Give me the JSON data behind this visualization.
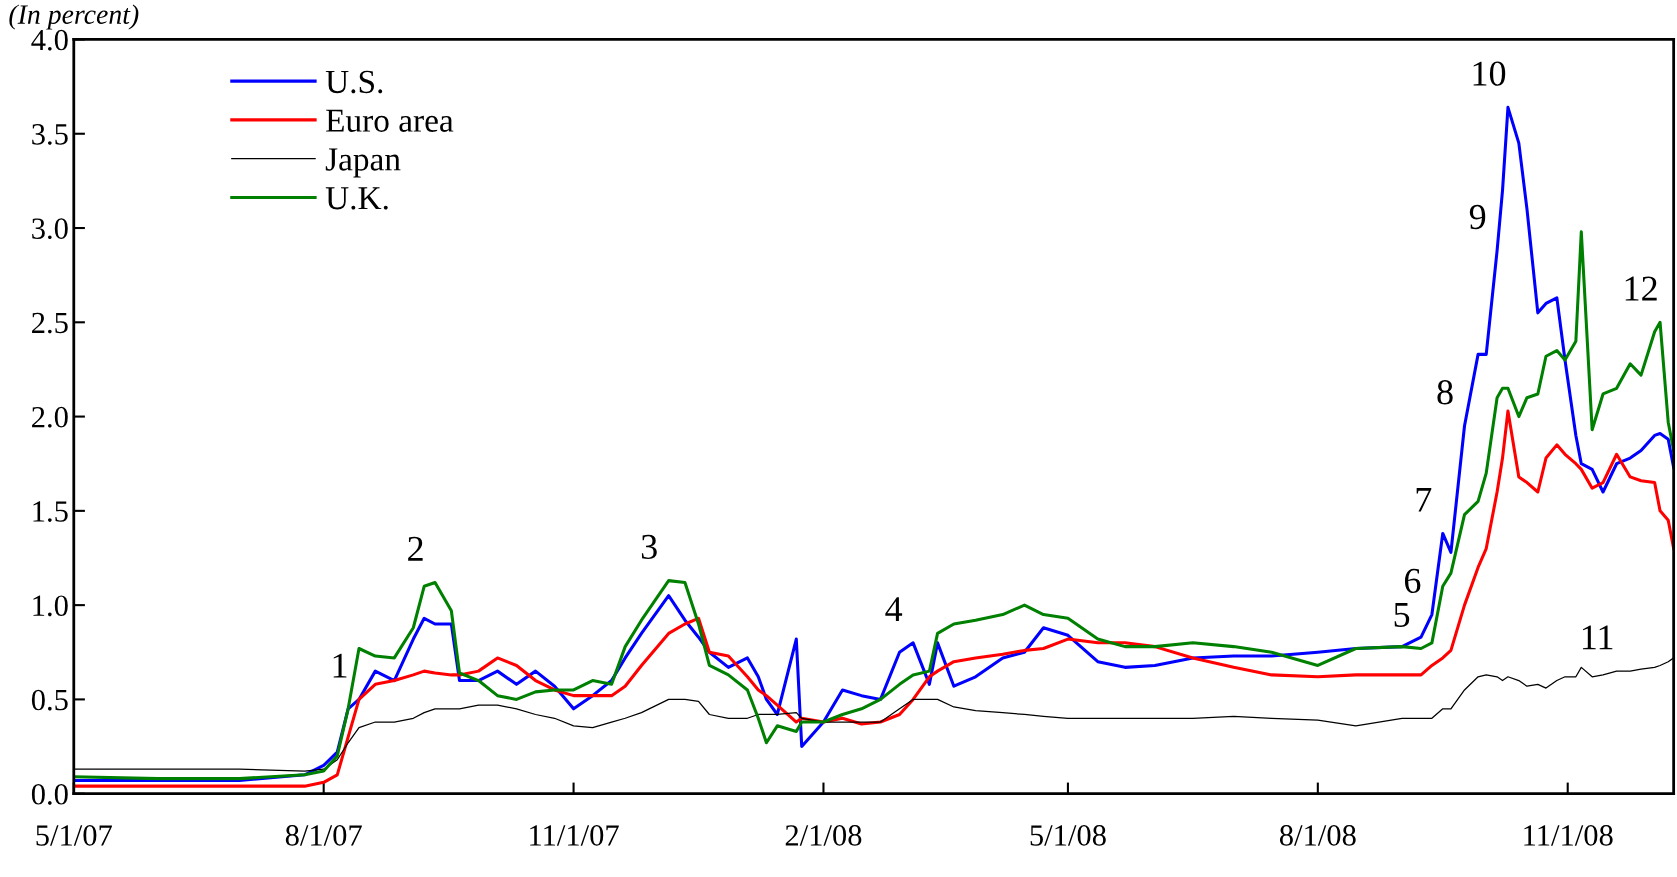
{
  "chart_data": {
    "type": "line",
    "ylabel": "(In percent)",
    "x": [
      "2007-05-01",
      "2007-06-01",
      "2007-07-01",
      "2007-07-25",
      "2007-08-01",
      "2007-08-06",
      "2007-08-10",
      "2007-08-14",
      "2007-08-20",
      "2007-08-27",
      "2007-09-03",
      "2007-09-07",
      "2007-09-11",
      "2007-09-17",
      "2007-09-20",
      "2007-09-27",
      "2007-10-04",
      "2007-10-11",
      "2007-10-18",
      "2007-10-25",
      "2007-11-01",
      "2007-11-08",
      "2007-11-15",
      "2007-11-20",
      "2007-11-26",
      "2007-12-06",
      "2007-12-12",
      "2007-12-17",
      "2007-12-21",
      "2007-12-28",
      "2008-01-04",
      "2008-01-08",
      "2008-01-11",
      "2008-01-15",
      "2008-01-22",
      "2008-01-24",
      "2008-02-01",
      "2008-02-08",
      "2008-02-15",
      "2008-02-22",
      "2008-02-29",
      "2008-03-05",
      "2008-03-11",
      "2008-03-14",
      "2008-03-20",
      "2008-03-28",
      "2008-04-07",
      "2008-04-15",
      "2008-04-22",
      "2008-05-01",
      "2008-05-12",
      "2008-05-22",
      "2008-06-02",
      "2008-06-16",
      "2008-07-01",
      "2008-07-15",
      "2008-08-01",
      "2008-08-15",
      "2008-09-01",
      "2008-09-08",
      "2008-09-12",
      "2008-09-16",
      "2008-09-19",
      "2008-09-24",
      "2008-09-29",
      "2008-10-02",
      "2008-10-06",
      "2008-10-08",
      "2008-10-10",
      "2008-10-14",
      "2008-10-17",
      "2008-10-21",
      "2008-10-24",
      "2008-10-28",
      "2008-10-31",
      "2008-11-04",
      "2008-11-06",
      "2008-11-10",
      "2008-11-14",
      "2008-11-19",
      "2008-11-24",
      "2008-11-28",
      "2008-12-03",
      "2008-12-05",
      "2008-12-08",
      "2008-12-10"
    ],
    "series": [
      {
        "name": "U.S.",
        "color": "#0000ff",
        "values": [
          0.07,
          0.07,
          0.07,
          0.1,
          0.15,
          0.22,
          0.45,
          0.5,
          0.65,
          0.6,
          0.82,
          0.93,
          0.9,
          0.9,
          0.6,
          0.6,
          0.65,
          0.58,
          0.65,
          0.57,
          0.45,
          0.52,
          0.6,
          0.72,
          0.85,
          1.05,
          0.92,
          0.83,
          0.75,
          0.67,
          0.72,
          0.62,
          0.5,
          0.42,
          0.82,
          0.25,
          0.38,
          0.55,
          0.52,
          0.5,
          0.75,
          0.8,
          0.58,
          0.8,
          0.57,
          0.62,
          0.72,
          0.75,
          0.88,
          0.84,
          0.7,
          0.67,
          0.68,
          0.72,
          0.73,
          0.73,
          0.75,
          0.77,
          0.78,
          0.83,
          0.95,
          1.38,
          1.28,
          1.95,
          2.33,
          2.33,
          2.88,
          3.2,
          3.64,
          3.45,
          3.1,
          2.55,
          2.6,
          2.63,
          2.3,
          1.9,
          1.75,
          1.72,
          1.6,
          1.75,
          1.78,
          1.82,
          1.9,
          1.91,
          1.88,
          1.73
        ]
      },
      {
        "name": "Euro area",
        "color": "#ff0000",
        "values": [
          0.04,
          0.04,
          0.04,
          0.04,
          0.06,
          0.1,
          0.3,
          0.5,
          0.58,
          0.6,
          0.63,
          0.65,
          0.64,
          0.63,
          0.63,
          0.65,
          0.72,
          0.68,
          0.6,
          0.55,
          0.52,
          0.52,
          0.52,
          0.57,
          0.68,
          0.85,
          0.9,
          0.93,
          0.75,
          0.73,
          0.62,
          0.55,
          0.52,
          0.47,
          0.38,
          0.4,
          0.38,
          0.4,
          0.37,
          0.38,
          0.42,
          0.5,
          0.62,
          0.65,
          0.7,
          0.72,
          0.74,
          0.76,
          0.77,
          0.82,
          0.8,
          0.8,
          0.78,
          0.72,
          0.67,
          0.63,
          0.62,
          0.63,
          0.63,
          0.63,
          0.68,
          0.72,
          0.76,
          1.0,
          1.2,
          1.3,
          1.6,
          1.78,
          2.03,
          1.68,
          1.65,
          1.6,
          1.78,
          1.85,
          1.8,
          1.75,
          1.72,
          1.62,
          1.65,
          1.8,
          1.68,
          1.66,
          1.65,
          1.5,
          1.45,
          1.3
        ]
      },
      {
        "name": "Japan",
        "color": "#000000",
        "values": [
          0.13,
          0.13,
          0.13,
          0.12,
          0.13,
          0.18,
          0.27,
          0.35,
          0.38,
          0.38,
          0.4,
          0.43,
          0.45,
          0.45,
          0.45,
          0.47,
          0.47,
          0.45,
          0.42,
          0.4,
          0.36,
          0.35,
          0.38,
          0.4,
          0.43,
          0.5,
          0.5,
          0.49,
          0.42,
          0.4,
          0.4,
          0.42,
          0.42,
          0.42,
          0.43,
          0.4,
          0.38,
          0.38,
          0.38,
          0.38,
          0.45,
          0.5,
          0.5,
          0.5,
          0.46,
          0.44,
          0.43,
          0.42,
          0.41,
          0.4,
          0.4,
          0.4,
          0.4,
          0.4,
          0.41,
          0.4,
          0.39,
          0.36,
          0.4,
          0.4,
          0.4,
          0.45,
          0.45,
          0.55,
          0.62,
          0.63,
          0.62,
          0.6,
          0.62,
          0.6,
          0.57,
          0.58,
          0.56,
          0.6,
          0.62,
          0.62,
          0.67,
          0.62,
          0.63,
          0.65,
          0.65,
          0.66,
          0.67,
          0.68,
          0.7,
          0.72
        ]
      },
      {
        "name": "U.K.",
        "color": "#008000",
        "values": [
          0.09,
          0.08,
          0.08,
          0.1,
          0.12,
          0.2,
          0.45,
          0.77,
          0.73,
          0.72,
          0.88,
          1.1,
          1.12,
          0.97,
          0.64,
          0.6,
          0.52,
          0.5,
          0.54,
          0.55,
          0.55,
          0.6,
          0.58,
          0.78,
          0.92,
          1.13,
          1.12,
          0.9,
          0.68,
          0.63,
          0.55,
          0.4,
          0.27,
          0.36,
          0.33,
          0.38,
          0.38,
          0.42,
          0.45,
          0.5,
          0.58,
          0.63,
          0.65,
          0.85,
          0.9,
          0.92,
          0.95,
          1.0,
          0.95,
          0.93,
          0.82,
          0.78,
          0.78,
          0.8,
          0.78,
          0.75,
          0.68,
          0.77,
          0.78,
          0.77,
          0.8,
          1.1,
          1.17,
          1.48,
          1.55,
          1.7,
          2.1,
          2.15,
          2.15,
          2.0,
          2.1,
          2.12,
          2.32,
          2.35,
          2.3,
          2.4,
          2.98,
          1.93,
          2.12,
          2.15,
          2.28,
          2.22,
          2.45,
          2.5,
          1.97,
          1.82
        ]
      }
    ],
    "xlim": [
      "2007-05-01",
      "2008-12-10"
    ],
    "xticks": [
      {
        "value": "2007-05-01",
        "label": "5/1/07"
      },
      {
        "value": "2007-08-01",
        "label": "8/1/07"
      },
      {
        "value": "2007-11-01",
        "label": "11/1/07"
      },
      {
        "value": "2008-02-01",
        "label": "2/1/08"
      },
      {
        "value": "2008-05-01",
        "label": "5/1/08"
      },
      {
        "value": "2008-08-01",
        "label": "8/1/08"
      },
      {
        "value": "2008-11-01",
        "label": "11/1/08"
      }
    ],
    "ylim": [
      0,
      4
    ],
    "yticks": [
      {
        "value": 0,
        "label": "0.0"
      },
      {
        "value": 0.5,
        "label": "0.5"
      },
      {
        "value": 1,
        "label": "1.0"
      },
      {
        "value": 1.5,
        "label": "1.5"
      },
      {
        "value": 2,
        "label": "2.0"
      },
      {
        "value": 2.5,
        "label": "2.5"
      },
      {
        "value": 3,
        "label": "3.0"
      },
      {
        "value": 3.5,
        "label": "3.5"
      },
      {
        "value": 4,
        "label": "4.0"
      }
    ],
    "legend": "top left",
    "grid": false,
    "marker": "none",
    "line_style": "solid",
    "annotations": [
      {
        "text": "1",
        "x": "2007-08-14",
        "y": 0.5
      },
      {
        "text": "2",
        "x": "2007-09-11",
        "y": 1.12
      },
      {
        "text": "3",
        "x": "2007-12-06",
        "y": 1.13
      },
      {
        "text": "4",
        "x": "2008-03-05",
        "y": 0.8
      },
      {
        "text": "5",
        "x": "2008-09-08",
        "y": 0.77
      },
      {
        "text": "6",
        "x": "2008-09-12",
        "y": 0.95
      },
      {
        "text": "7",
        "x": "2008-09-16",
        "y": 1.38
      },
      {
        "text": "8",
        "x": "2008-09-24",
        "y": 1.95
      },
      {
        "text": "9",
        "x": "2008-10-06",
        "y": 2.88
      },
      {
        "text": "10",
        "x": "2008-10-10",
        "y": 3.64
      },
      {
        "text": "11",
        "x": "2008-11-19",
        "y": 0.65
      },
      {
        "text": "12",
        "x": "2008-12-05",
        "y": 2.5
      }
    ]
  }
}
